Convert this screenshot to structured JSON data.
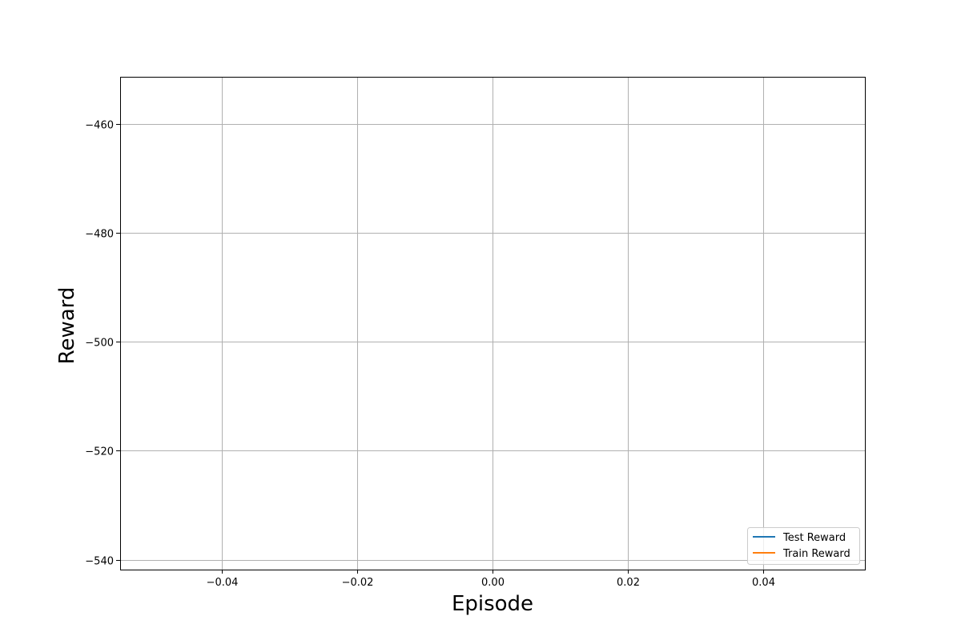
{
  "chart_data": {
    "type": "line",
    "title": "",
    "xlabel": "Episode",
    "ylabel": "Reward",
    "xlim": [
      -0.055,
      0.055
    ],
    "ylim": [
      -541.8,
      -451.4
    ],
    "xticks": [
      -0.04,
      -0.02,
      0.0,
      0.02,
      0.04
    ],
    "xtick_labels": [
      "−0.04",
      "−0.02",
      "0.00",
      "0.02",
      "0.04"
    ],
    "yticks": [
      -460,
      -480,
      -500,
      -520,
      -540
    ],
    "ytick_labels": [
      "−460",
      "−480",
      "−500",
      "−520",
      "−540"
    ],
    "grid": true,
    "legend_position": "lower-right",
    "series": [
      {
        "name": "Test Reward",
        "color": "#1f77b4",
        "x": [],
        "y": []
      },
      {
        "name": "Train Reward",
        "color": "#ff7f0e",
        "x": [],
        "y": []
      }
    ]
  }
}
